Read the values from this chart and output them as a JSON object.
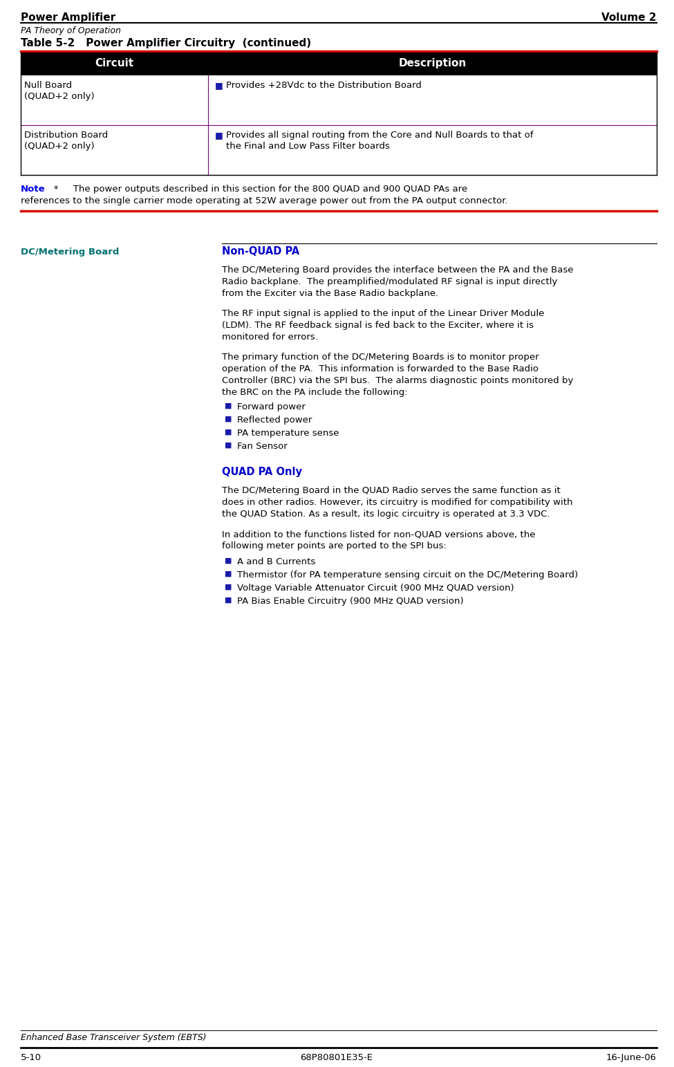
{
  "header_left": "Power Amplifier",
  "header_right": "Volume 2",
  "subtitle": "PA Theory of Operation",
  "table_title_bold": "Table 5-2",
  "table_title_rest": "     Power Amplifier Circuitry  (continued)",
  "table_header": [
    "Circuit",
    "Description"
  ],
  "table_header_bg": "#000000",
  "table_header_fg": "#ffffff",
  "table_row1_circuit_line1": "Null Board",
  "table_row1_circuit_line2": "(QUAD+2 only)",
  "table_row1_desc_bullet": "■",
  "table_row1_desc_text": " Provides +28Vdc to the Distribution Board",
  "table_row2_circuit_line1": "Distribution Board",
  "table_row2_circuit_line2": "(QUAD+2 only)",
  "table_row2_desc_bullet": "■",
  "table_row2_desc_line1": " Provides all signal routing from the Core and Null Boards to that of",
  "table_row2_desc_line2": "   the Final and Low Pass Filter boards",
  "note_label": "Note",
  "note_line1": "   *     The power outputs described in this section for the 800 QUAD and 900 QUAD PAs are",
  "note_line2": "references to the single carrier mode operating at 52W average power out from the PA output connector.",
  "section_left": "DC/Metering Board",
  "section_heading": "Non-QUAD PA",
  "para1_lines": [
    "The DC/Metering Board provides the interface between the PA and the Base",
    "Radio backplane.  The preamplified/modulated RF signal is input directly",
    "from the Exciter via the Base Radio backplane."
  ],
  "para2_lines": [
    "The RF input signal is applied to the input of the Linear Driver Module",
    "(LDM). The RF feedback signal is fed back to the Exciter, where it is",
    "monitored for errors."
  ],
  "para3_lines": [
    "The primary function of the DC/Metering Boards is to monitor proper",
    "operation of the PA.  This information is forwarded to the Base Radio",
    "Controller (BRC) via the SPI bus.  The alarms diagnostic points monitored by",
    "the BRC on the PA include the following:"
  ],
  "bullets1": [
    "Forward power",
    "Reflected power",
    "PA temperature sense",
    "Fan Sensor"
  ],
  "section_heading2": "QUAD PA Only",
  "para4_lines": [
    "The DC/Metering Board in the QUAD Radio serves the same function as it",
    "does in other radios. However, its circuitry is modified for compatibility with",
    "the QUAD Station. As a result, its logic circuitry is operated at 3.3 VDC."
  ],
  "para5_lines": [
    "In addition to the functions listed for non-QUAD versions above, the",
    "following meter points are ported to the SPI bus:"
  ],
  "bullets2": [
    "A and B Currents",
    "Thermistor (for PA temperature sensing circuit on the DC/Metering Board)",
    "Voltage Variable Attenuator Circuit (900 MHz QUAD version)",
    "PA Bias Enable Circuitry (900 MHz QUAD version)"
  ],
  "footer_italic": "Enhanced Base Transceiver System (EBTS)",
  "footer_center": "68P80801E35-E",
  "footer_page": "5-10",
  "footer_date": "16-June-06",
  "col_split": 0.295,
  "table_header_bg_color": "#000000",
  "red_line_color": "#dd0000",
  "purple_line_color": "#800080",
  "blue_color": "#0000cc",
  "teal_color": "#007070",
  "bullet_color": "#1a1aaa",
  "note_blue": "#0000ee"
}
